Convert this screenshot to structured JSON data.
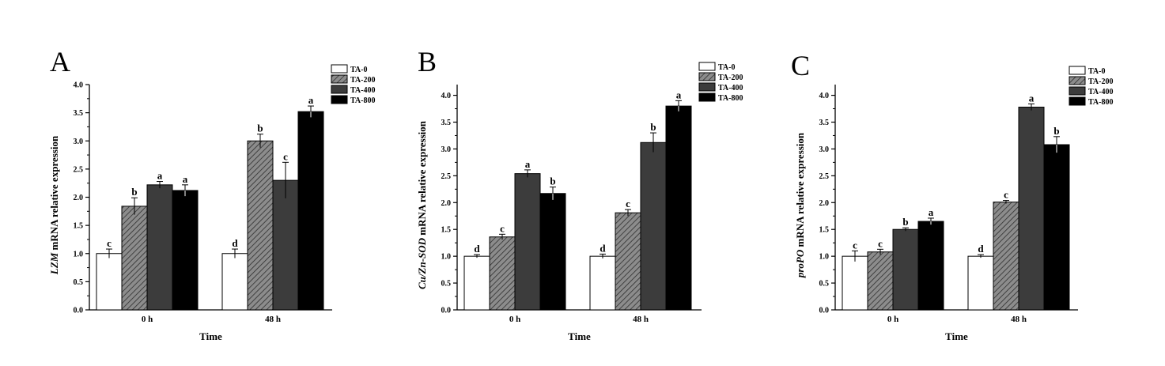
{
  "series_style": [
    {
      "fill": "#ffffff",
      "hatch": false
    },
    {
      "fill": "#7d7d7d",
      "hatch": true
    },
    {
      "fill": "#3c3c3c",
      "hatch": false
    },
    {
      "fill": "#000000",
      "hatch": false
    }
  ],
  "chart_data": [
    {
      "type": "bar",
      "panel_label": "A",
      "title": "",
      "xlabel": "Time",
      "ylabel_gene": "LZM",
      "ylabel_rest": " mRNA relative expression",
      "categories": [
        "0 h",
        "48 h"
      ],
      "ylim": [
        0.0,
        4.0
      ],
      "yticks": [
        "0.0",
        "0.5",
        "1.0",
        "1.5",
        "2.0",
        "2.5",
        "3.0",
        "3.5",
        "4.0"
      ],
      "legend_position": "top-right",
      "series": [
        {
          "name": "TA-0",
          "values": [
            1.0,
            1.0
          ],
          "errors": [
            0.08,
            0.08
          ],
          "letters": [
            "c",
            "d"
          ]
        },
        {
          "name": "TA-200",
          "values": [
            1.84,
            3.0
          ],
          "errors": [
            0.15,
            0.12
          ],
          "letters": [
            "b",
            "b"
          ]
        },
        {
          "name": "TA-400",
          "values": [
            2.22,
            2.3
          ],
          "errors": [
            0.06,
            0.32
          ],
          "letters": [
            "a",
            "c"
          ]
        },
        {
          "name": "TA-800",
          "values": [
            2.12,
            3.52
          ],
          "errors": [
            0.1,
            0.1
          ],
          "letters": [
            "a",
            "a"
          ]
        }
      ]
    },
    {
      "type": "bar",
      "panel_label": "B",
      "title": "",
      "xlabel": "Time",
      "ylabel_gene": "Cu/Zn-SOD",
      "ylabel_rest": " mRNA relative expression",
      "categories": [
        "0 h",
        "48 h"
      ],
      "ylim": [
        0.0,
        4.2
      ],
      "yticks": [
        "0.0",
        "0.5",
        "1.0",
        "1.5",
        "2.0",
        "2.5",
        "3.0",
        "3.5",
        "4.0"
      ],
      "legend_position": "top-right",
      "series": [
        {
          "name": "TA-0",
          "values": [
            1.0,
            1.0
          ],
          "errors": [
            0.03,
            0.04
          ],
          "letters": [
            "d",
            "d"
          ]
        },
        {
          "name": "TA-200",
          "values": [
            1.36,
            1.81
          ],
          "errors": [
            0.05,
            0.06
          ],
          "letters": [
            "c",
            "c"
          ]
        },
        {
          "name": "TA-400",
          "values": [
            2.54,
            3.12
          ],
          "errors": [
            0.07,
            0.18
          ],
          "letters": [
            "a",
            "b"
          ]
        },
        {
          "name": "TA-800",
          "values": [
            2.17,
            3.8
          ],
          "errors": [
            0.12,
            0.1
          ],
          "letters": [
            "b",
            "a"
          ]
        }
      ]
    },
    {
      "type": "bar",
      "panel_label": "C",
      "title": "",
      "xlabel": "Time",
      "ylabel_gene": "proPO",
      "ylabel_rest": " mRNA relative expression",
      "categories": [
        "0 h",
        "48 h"
      ],
      "ylim": [
        0.0,
        4.2
      ],
      "yticks": [
        "0.0",
        "0.5",
        "1.0",
        "1.5",
        "2.0",
        "2.5",
        "3.0",
        "3.5",
        "4.0"
      ],
      "legend_position": "top-right",
      "series": [
        {
          "name": "TA-0",
          "values": [
            1.0,
            1.0
          ],
          "errors": [
            0.1,
            0.03
          ],
          "letters": [
            "c",
            "d"
          ]
        },
        {
          "name": "TA-200",
          "values": [
            1.08,
            2.01
          ],
          "errors": [
            0.05,
            0.03
          ],
          "letters": [
            "c",
            "c"
          ]
        },
        {
          "name": "TA-400",
          "values": [
            1.5,
            3.78
          ],
          "errors": [
            0.03,
            0.06
          ],
          "letters": [
            "b",
            "a"
          ]
        },
        {
          "name": "TA-800",
          "values": [
            1.65,
            3.08
          ],
          "errors": [
            0.06,
            0.15
          ],
          "letters": [
            "a",
            "b"
          ]
        }
      ]
    }
  ]
}
